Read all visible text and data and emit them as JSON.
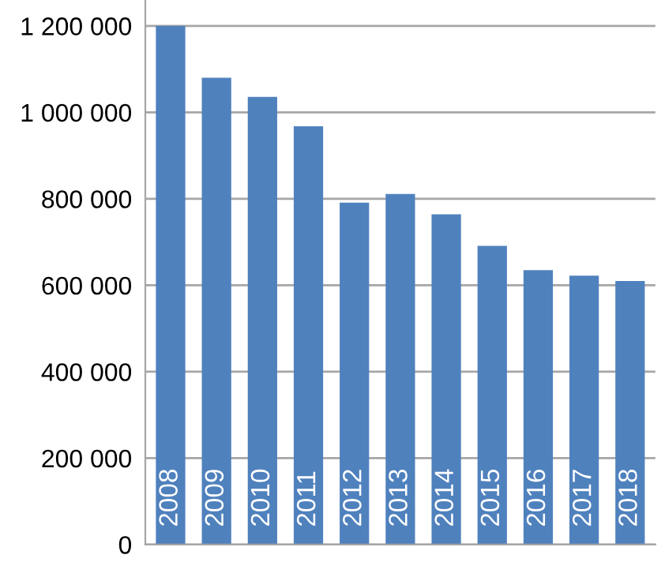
{
  "chart_data": {
    "type": "bar",
    "categories": [
      "2008",
      "2009",
      "2010",
      "2011",
      "2012",
      "2013",
      "2014",
      "2015",
      "2016",
      "2017",
      "2018"
    ],
    "values": [
      1200000,
      1080000,
      1036000,
      968000,
      791000,
      811000,
      764000,
      691000,
      635000,
      622000,
      610000
    ],
    "color": "#4f81bd",
    "ylim": [
      0,
      1260000
    ],
    "yticks": [
      {
        "value": 0,
        "label": "0"
      },
      {
        "value": 200000,
        "label": "200 000"
      },
      {
        "value": 400000,
        "label": "400 000"
      },
      {
        "value": 600000,
        "label": "600 000"
      },
      {
        "value": 800000,
        "label": "800 000"
      },
      {
        "value": 1000000,
        "label": "1 000 000"
      },
      {
        "value": 1200000,
        "label": "1 200 000"
      }
    ],
    "grid": "y",
    "legend": false
  }
}
